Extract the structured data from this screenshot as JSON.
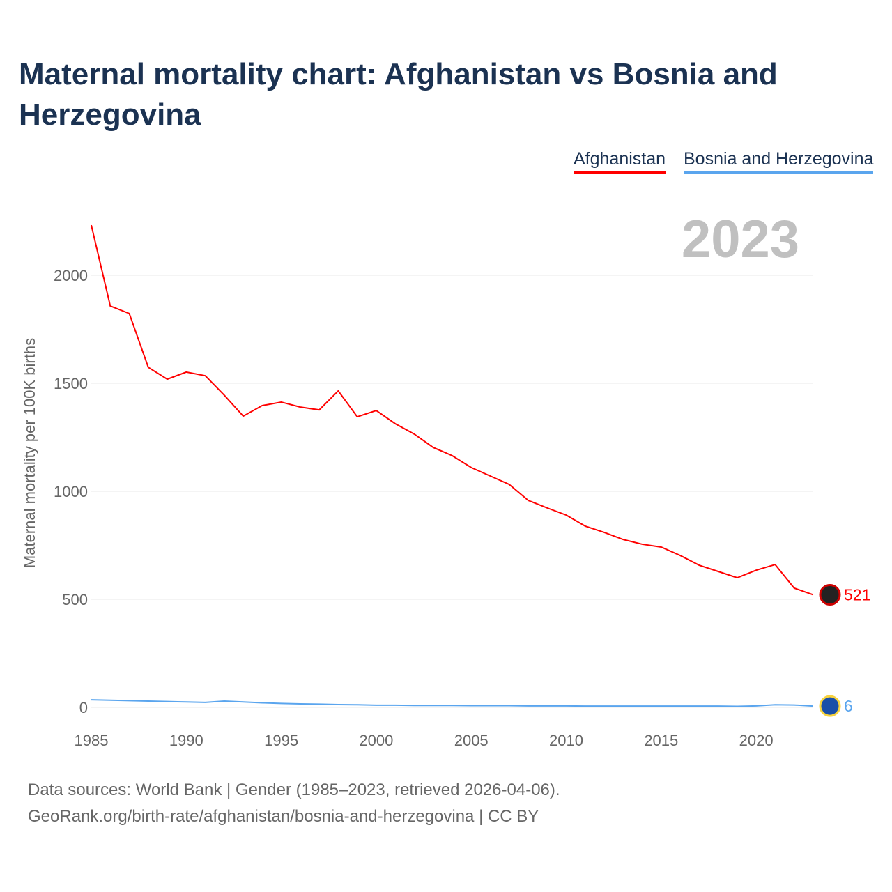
{
  "title": "Maternal mortality chart: Afghanistan vs Bosnia and Herzegovina",
  "year_label": "2023",
  "source_line1": "Data sources: World Bank | Gender (1985–2023, retrieved 2026-04-06).",
  "source_line2": "GeoRank.org/birth-rate/afghanistan/bosnia-and-herzegovina | CC BY",
  "chart_data": {
    "type": "line",
    "title": "Maternal mortality chart: Afghanistan vs Bosnia and Herzegovina",
    "xlabel": "",
    "ylabel": "Maternal mortality per 100K births",
    "xlim": [
      1985,
      2023
    ],
    "ylim": [
      0,
      2250
    ],
    "xticks": [
      1985,
      1990,
      1995,
      2000,
      2005,
      2010,
      2015,
      2020
    ],
    "yticks": [
      0,
      500,
      1000,
      1500,
      2000
    ],
    "grid": true,
    "legend": "top-right",
    "x": [
      1985,
      1986,
      1987,
      1988,
      1989,
      1990,
      1991,
      1992,
      1993,
      1994,
      1995,
      1996,
      1997,
      1998,
      1999,
      2000,
      2001,
      2002,
      2003,
      2004,
      2005,
      2006,
      2007,
      2008,
      2009,
      2010,
      2011,
      2012,
      2013,
      2014,
      2015,
      2016,
      2017,
      2018,
      2019,
      2020,
      2021,
      2022,
      2023
    ],
    "series": [
      {
        "name": "Afghanistan",
        "color": "#ff0000",
        "end_label": "521",
        "values": [
          2232,
          1858,
          1823,
          1574,
          1519,
          1552,
          1535,
          1445,
          1348,
          1397,
          1413,
          1390,
          1377,
          1465,
          1345,
          1374,
          1313,
          1265,
          1203,
          1165,
          1110,
          1071,
          1032,
          958,
          923,
          890,
          839,
          810,
          777,
          755,
          742,
          703,
          658,
          629,
          600,
          635,
          661,
          552,
          521
        ]
      },
      {
        "name": "Bosnia and Herzegovina",
        "color": "#5aa5ee",
        "end_label": "6",
        "values": [
          35,
          33,
          31,
          29,
          27,
          25,
          23,
          29,
          25,
          21,
          18,
          16,
          15,
          13,
          12,
          10,
          10,
          9,
          9,
          9,
          8,
          8,
          8,
          7,
          7,
          7,
          6,
          6,
          6,
          6,
          6,
          6,
          6,
          6,
          5,
          7,
          12,
          11,
          6
        ]
      }
    ]
  }
}
